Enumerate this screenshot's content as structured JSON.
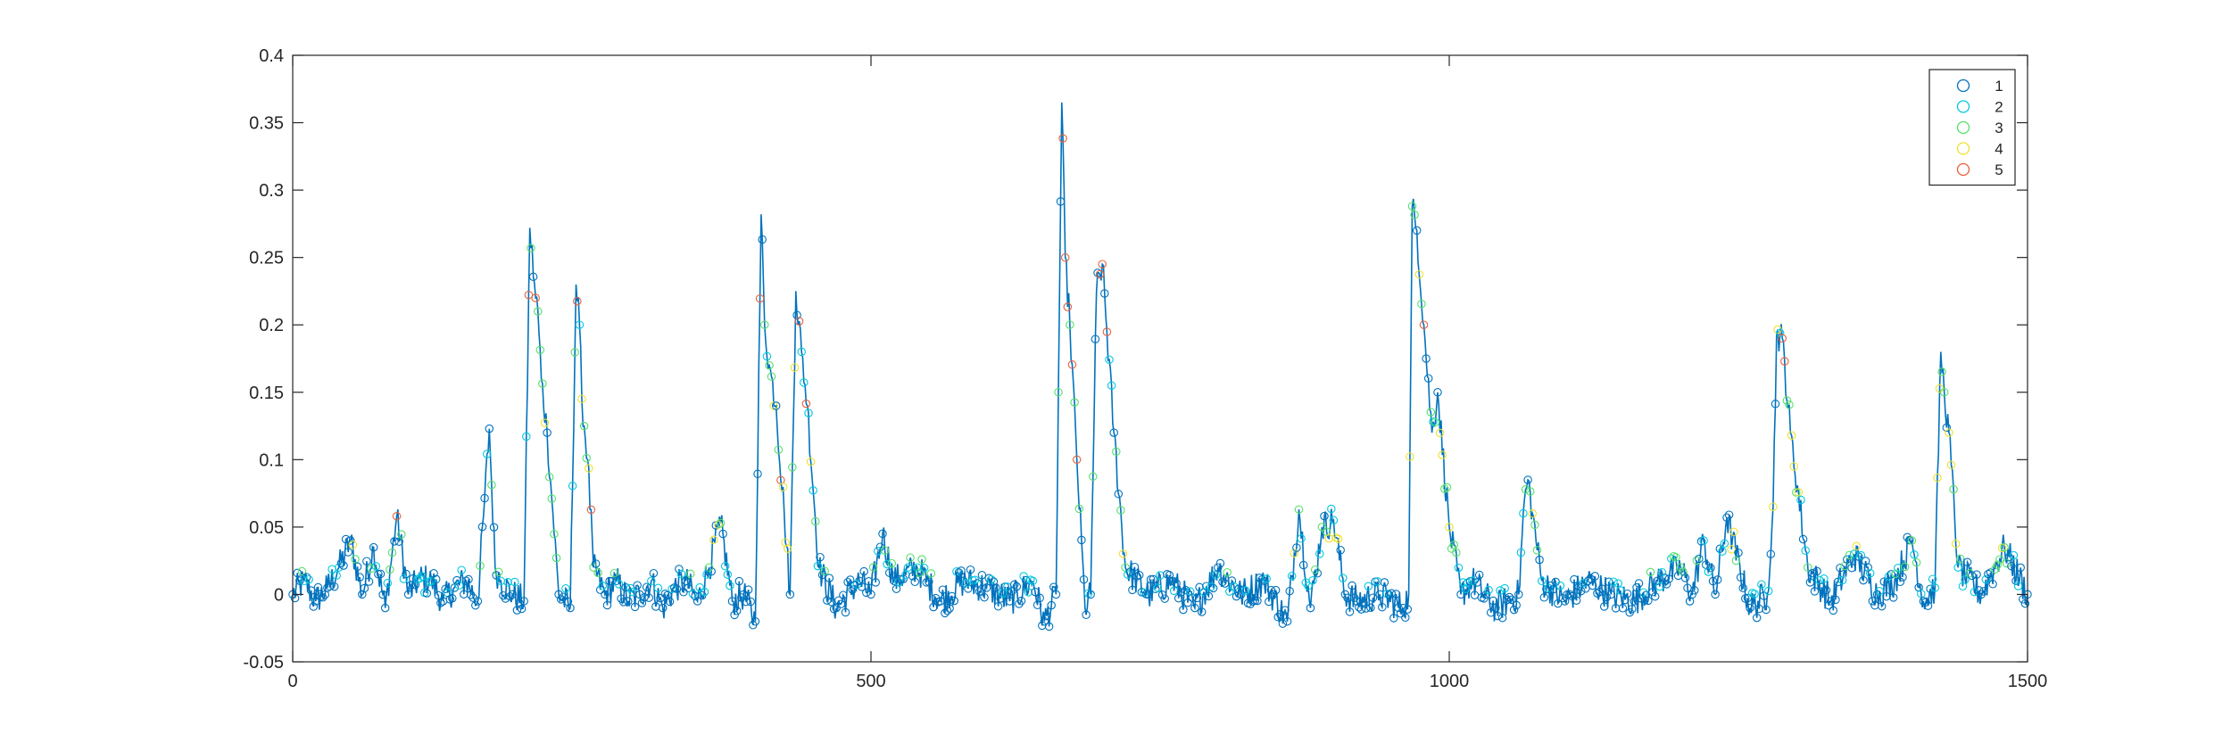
{
  "chart_data": {
    "type": "line",
    "title": "",
    "xlabel": "",
    "ylabel": "",
    "xlim": [
      0,
      1500
    ],
    "ylim": [
      -0.05,
      0.4
    ],
    "x_ticks": [
      0,
      500,
      1000,
      1500
    ],
    "x_tick_labels": [
      "0",
      "500",
      "1000",
      "1500"
    ],
    "y_ticks": [
      -0.05,
      0,
      0.05,
      0.1,
      0.15,
      0.2,
      0.25,
      0.3,
      0.35,
      0.4
    ],
    "y_tick_labels": [
      "-0.05",
      "0",
      "0.05",
      "0.1",
      "0.15",
      "0.2",
      "0.25",
      "0.3",
      "0.35",
      "0.4"
    ],
    "grid": false,
    "legend_position": "top-right",
    "line_color": "#0072bd",
    "marker": "open-circle",
    "description_note_series": "Connected line of ~1500 samples with circle markers colored by cluster label 1-5",
    "legend": [
      {
        "label": "1",
        "color": "#0072bd"
      },
      {
        "label": "2",
        "color": "#00c8e0"
      },
      {
        "label": "3",
        "color": "#55e06a"
      },
      {
        "label": "4",
        "color": "#f0e030"
      },
      {
        "label": "5",
        "color": "#e8603a"
      }
    ],
    "baseline": {
      "mean": 0.0,
      "amplitude": 0.012
    },
    "x": [
      0,
      10,
      20,
      30,
      40,
      50,
      60,
      70,
      80,
      90,
      100,
      110,
      120,
      130,
      140,
      150,
      160,
      165,
      170,
      175,
      180,
      190,
      200,
      205,
      210,
      212,
      215,
      220,
      225,
      230,
      240,
      245,
      248,
      250,
      255,
      260,
      270,
      280,
      290,
      300,
      310,
      320,
      330,
      340,
      350,
      360,
      370,
      380,
      390,
      400,
      405,
      408,
      412,
      418,
      425,
      430,
      435,
      440,
      445,
      455,
      470,
      490,
      500,
      510,
      520,
      540,
      560,
      580,
      600,
      620,
      640,
      650,
      660,
      665,
      668,
      672,
      678,
      685,
      690,
      695,
      700,
      710,
      720,
      740,
      760,
      780,
      800,
      820,
      840,
      860,
      870,
      880,
      890,
      900,
      910,
      920,
      940,
      960,
      965,
      968,
      972,
      978,
      985,
      990,
      1000,
      1010,
      1020,
      1040,
      1060,
      1065,
      1068,
      1072,
      1080,
      1100,
      1120,
      1140,
      1160,
      1180,
      1200,
      1210,
      1220,
      1230,
      1240,
      1260,
      1275,
      1280,
      1283,
      1288,
      1295,
      1310,
      1330,
      1350,
      1370,
      1385,
      1400,
      1410,
      1420,
      1425,
      1428,
      1432,
      1440,
      1460,
      1480,
      1500
    ],
    "y": [
      0.0,
      0.01,
      -0.005,
      0.005,
      0.02,
      0.04,
      0.0,
      0.035,
      -0.01,
      0.058,
      0.0,
      0.012,
      0.01,
      -0.005,
      0.005,
      0.01,
      -0.005,
      0.058,
      0.123,
      0.02,
      0.01,
      0.0,
      -0.005,
      0.272,
      0.22,
      0.21,
      0.16,
      0.12,
      0.06,
      0.0,
      -0.01,
      0.23,
      0.2,
      0.145,
      0.1,
      0.02,
      0.0,
      0.01,
      -0.005,
      0.0,
      0.01,
      -0.01,
      0.005,
      0.01,
      -0.005,
      0.02,
      0.053,
      -0.005,
      0.0,
      -0.02,
      0.282,
      0.2,
      0.17,
      0.14,
      0.06,
      0.0,
      0.225,
      0.18,
      0.14,
      0.02,
      -0.01,
      0.01,
      0.0,
      0.045,
      0.01,
      0.02,
      -0.005,
      0.01,
      0.005,
      -0.005,
      0.01,
      -0.02,
      0.0,
      0.365,
      0.25,
      0.2,
      0.1,
      -0.01,
      0.0,
      0.225,
      0.245,
      0.12,
      0.02,
      0.0,
      0.01,
      -0.01,
      0.02,
      0.0,
      0.01,
      -0.02,
      0.063,
      -0.01,
      0.05,
      0.055,
      0.0,
      -0.005,
      0.0,
      -0.01,
      0.0,
      0.288,
      0.27,
      0.2,
      0.12,
      0.15,
      0.05,
      0.0,
      0.01,
      -0.01,
      0.0,
      0.07,
      0.085,
      0.06,
      0.01,
      -0.005,
      0.01,
      0.0,
      -0.005,
      0.01,
      0.02,
      0.0,
      0.04,
      0.0,
      0.057,
      -0.01,
      0.0,
      0.065,
      0.193,
      0.19,
      0.12,
      0.02,
      -0.005,
      0.03,
      0.0,
      0.01,
      0.04,
      -0.005,
      0.005,
      0.18,
      0.15,
      0.12,
      0.02,
      0.0,
      0.035,
      0.0
    ]
  }
}
